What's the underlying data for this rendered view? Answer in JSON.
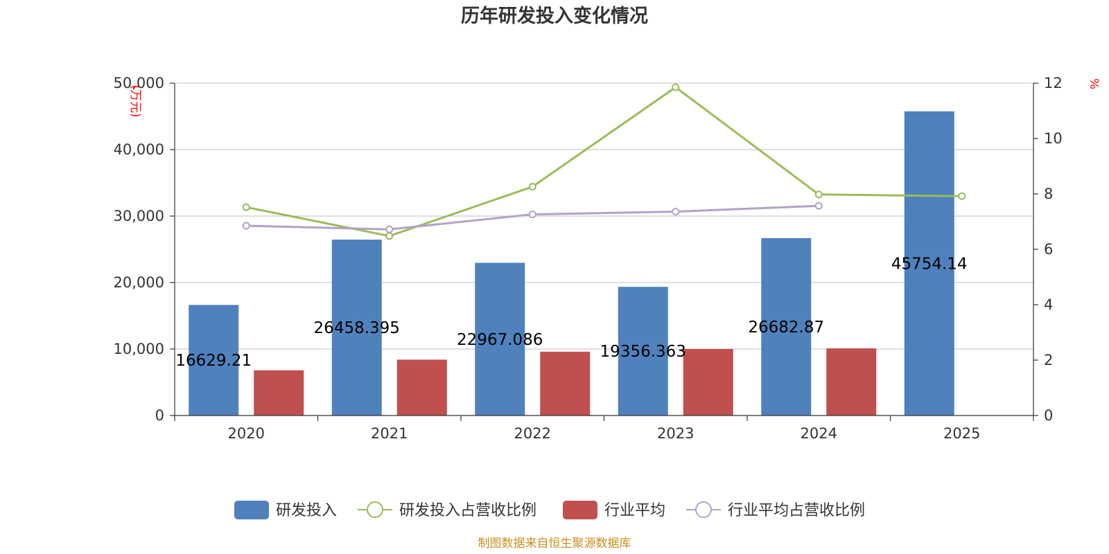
{
  "chart_data": {
    "type": "bar",
    "title": "历年研发投入变化情况",
    "categories": [
      "2020",
      "2021",
      "2022",
      "2023",
      "2024",
      "2025"
    ],
    "y_left": {
      "unit": "(万元)",
      "min": 0,
      "max": 50000,
      "ticks": [
        "0",
        "10,000",
        "20,000",
        "30,000",
        "40,000",
        "50,000"
      ]
    },
    "y_right": {
      "unit": "%",
      "min": 0,
      "max": 12,
      "ticks": [
        "0",
        "2",
        "4",
        "6",
        "8",
        "10",
        "12"
      ]
    },
    "grid": true,
    "legend_position": "bottom",
    "series": [
      {
        "name": "研发投入",
        "type": "bar",
        "axis": "left",
        "color": "#4f81bd",
        "values": [
          16629.21,
          26458.395,
          22967.086,
          19356.363,
          26682.87,
          45754.14
        ],
        "labels": [
          "16629.21",
          "26458.395",
          "22967.086",
          "19356.363",
          "26682.87",
          "45754.14"
        ]
      },
      {
        "name": "研发投入占营收比例",
        "type": "line",
        "axis": "right",
        "color": "#9bbb59",
        "values": [
          7.52,
          6.48,
          8.26,
          11.85,
          7.98,
          7.92
        ]
      },
      {
        "name": "行业平均",
        "type": "bar",
        "axis": "left",
        "color": "#c0504d",
        "values": [
          6800,
          8400,
          9600,
          10000,
          10100,
          null
        ]
      },
      {
        "name": "行业平均占营收比例",
        "type": "line",
        "axis": "right",
        "color": "#b3a2c7",
        "values": [
          6.85,
          6.72,
          7.26,
          7.36,
          7.57,
          null
        ]
      }
    ]
  },
  "source": "制图数据来自恒生聚源数据库"
}
